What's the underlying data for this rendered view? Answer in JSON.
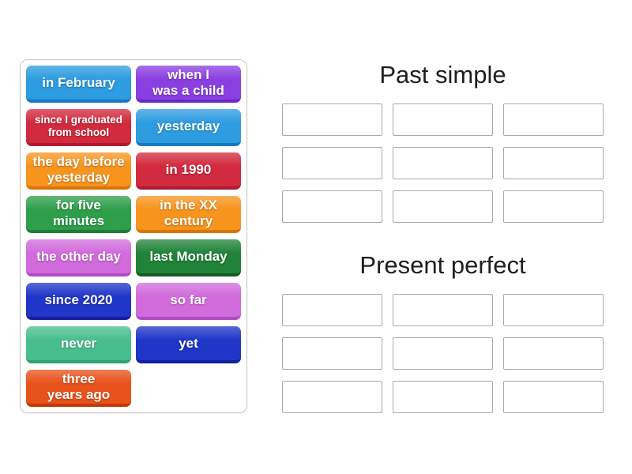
{
  "board": {
    "border_color": "#c9c9c9",
    "tile_text_color": "#ffffff"
  },
  "tiles": [
    {
      "label": "in February",
      "color": "#2D9CE0",
      "shade": "#1779C2"
    },
    {
      "label": "when I\nwas a child",
      "color": "#8A3FE0",
      "shade": "#6B28C8"
    },
    {
      "label": "since I graduated\nfrom school",
      "color": "#D22A3E",
      "shade": "#AE1B2F",
      "small": true
    },
    {
      "label": "yesterday",
      "color": "#2D9CE0",
      "shade": "#1779C2"
    },
    {
      "label": "the day before\nyesterday",
      "color": "#F7941E",
      "shade": "#D97407"
    },
    {
      "label": "in 1990",
      "color": "#D22A3E",
      "shade": "#AE1B2F"
    },
    {
      "label": "for five\nminutes",
      "color": "#2E9E4A",
      "shade": "#1E7D36"
    },
    {
      "label": "in the XX\ncentury",
      "color": "#F7941E",
      "shade": "#D97407"
    },
    {
      "label": "the other day",
      "color": "#D16BDC",
      "shade": "#B04BC4"
    },
    {
      "label": "last Monday",
      "color": "#208339",
      "shade": "#135C24"
    },
    {
      "label": "since 2020",
      "color": "#2036C8",
      "shade": "#141F9E"
    },
    {
      "label": "so far",
      "color": "#D16BDC",
      "shade": "#B04BC4"
    },
    {
      "label": "never",
      "color": "#49BE8D",
      "shade": "#2FA173"
    },
    {
      "label": "yet",
      "color": "#2036C8",
      "shade": "#141F9E"
    },
    {
      "label": "three\nyears ago",
      "color": "#E8521B",
      "shade": "#C23A0A"
    }
  ],
  "groups": [
    {
      "title": "Past simple",
      "slot_count": 9
    },
    {
      "title": "Present perfect",
      "slot_count": 9
    }
  ],
  "header_text_color": "#1e1e1e",
  "slot_border_color": "#a9a9a9"
}
